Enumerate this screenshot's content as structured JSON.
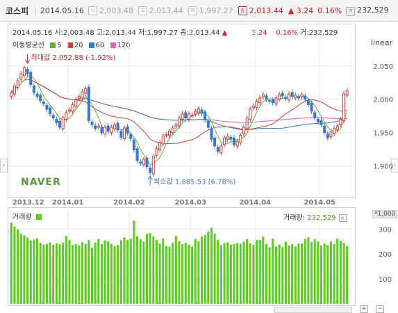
{
  "header": {
    "name": "코스피",
    "date": "2014.05.16",
    "open_tag": "시",
    "open": "2,003.48",
    "high_tag": "고",
    "high": "2,013.44",
    "low_tag": "저",
    "low": "1,997.27",
    "close_tag": "종",
    "close": "2,013.44",
    "change": "▲ 3.24",
    "change_pct": "0.16%",
    "volume_tag": "거",
    "volume": "232,529"
  },
  "info_line": {
    "date": "2014.05.16",
    "open_text": "시:2,003.48",
    "high_text": "고:2,013.44",
    "low_text": "저:1,997.27",
    "close_text": "종:2,013.44",
    "change": "3.24",
    "change_pct": "0.16%",
    "volume_text": "거:232,529"
  },
  "ma_legend": {
    "title": "이동평균선",
    "items": [
      {
        "label": "5",
        "color": "#66b135"
      },
      {
        "label": "20",
        "color": "#d23c3c"
      },
      {
        "label": "60",
        "color": "#3a78c8"
      },
      {
        "label": "120",
        "color": "#e35fb4"
      }
    ]
  },
  "scale_label": "linear",
  "logo": "NAVER",
  "volume_panel": {
    "label": "거래량",
    "right_label": "거래량:",
    "right_value": "232,529",
    "unit": "*1,000",
    "close_icon": "close-icon"
  },
  "colors": {
    "up": "#d23c3c",
    "down": "#3a78c8",
    "volume": "#5ccc20"
  },
  "chart_data": [
    {
      "type": "candlestick",
      "title": "코스피",
      "ylim": [
        1860,
        2080
      ],
      "y_ticks": [
        1900,
        1950,
        2000,
        2050
      ],
      "y_tick_labels": [
        "1,900",
        "1,950",
        "2,000",
        "2,050"
      ],
      "x_ticks": [
        "2013.12",
        "2014.01",
        "2014.02",
        "2014.03",
        "2014.04",
        "2014.05"
      ],
      "x_tick_index": [
        0,
        18,
        37,
        56,
        76,
        96
      ],
      "annotations": {
        "max": {
          "text": "최대값 2,052.88 (-1.92%)",
          "index": 5,
          "value": 2052.88
        },
        "min": {
          "text": "최소값 1,885.53 (6.78%)",
          "index": 43,
          "value": 1885.53
        }
      },
      "close": [
        2010,
        2020,
        2028,
        2038,
        2047,
        2038,
        2022,
        2010,
        2004,
        1998,
        1993,
        1985,
        1978,
        1972,
        1965,
        1958,
        1972,
        1980,
        1984,
        1992,
        1999,
        2004,
        2011,
        2016,
        1968,
        1962,
        1956,
        1960,
        1950,
        1958,
        1952,
        1958,
        1962,
        1954,
        1943,
        1957,
        1949,
        1941,
        1924,
        1908,
        1904,
        1910,
        1899,
        1890,
        1914,
        1926,
        1935,
        1945,
        1947,
        1952,
        1957,
        1962,
        1972,
        1978,
        1972,
        1978,
        1976,
        1982,
        1986,
        1979,
        1969,
        1958,
        1940,
        1930,
        1922,
        1930,
        1942,
        1945,
        1940,
        1932,
        1937,
        1946,
        1958,
        1972,
        1985,
        1990,
        1997,
        2002,
        2007,
        2000,
        1997,
        1995,
        2002,
        2007,
        2005,
        2001,
        2008,
        2004,
        2006,
        2002,
        2007,
        2000,
        1992,
        1982,
        1972,
        1966,
        1962,
        1950,
        1942,
        1951,
        1956,
        1960,
        1970,
        2008,
        2013
      ],
      "volume": [
        326,
        310,
        298,
        282,
        275,
        266,
        255,
        258,
        262,
        245,
        238,
        240,
        246,
        238,
        243,
        239,
        246,
        272,
        256,
        236,
        241,
        234,
        248,
        240,
        256,
        226,
        246,
        260,
        240,
        255,
        251,
        241,
        232,
        237,
        255,
        267,
        256,
        262,
        334,
        272,
        259,
        250,
        281,
        284,
        270,
        256,
        242,
        263,
        232,
        230,
        246,
        272,
        251,
        240,
        245,
        238,
        230,
        260,
        251,
        271,
        277,
        290,
        305,
        282,
        257,
        236,
        244,
        247,
        238,
        240,
        244,
        241,
        250,
        260,
        243,
        238,
        256,
        256,
        270,
        241,
        227,
        262,
        230,
        238,
        228,
        249,
        234,
        240,
        230,
        242,
        243,
        260,
        267,
        248,
        260,
        250,
        234,
        243,
        236,
        251,
        240,
        262,
        253,
        245,
        232
      ],
      "volume_ylim": [
        0,
        340
      ],
      "volume_ticks": [
        100,
        200,
        300
      ]
    }
  ]
}
